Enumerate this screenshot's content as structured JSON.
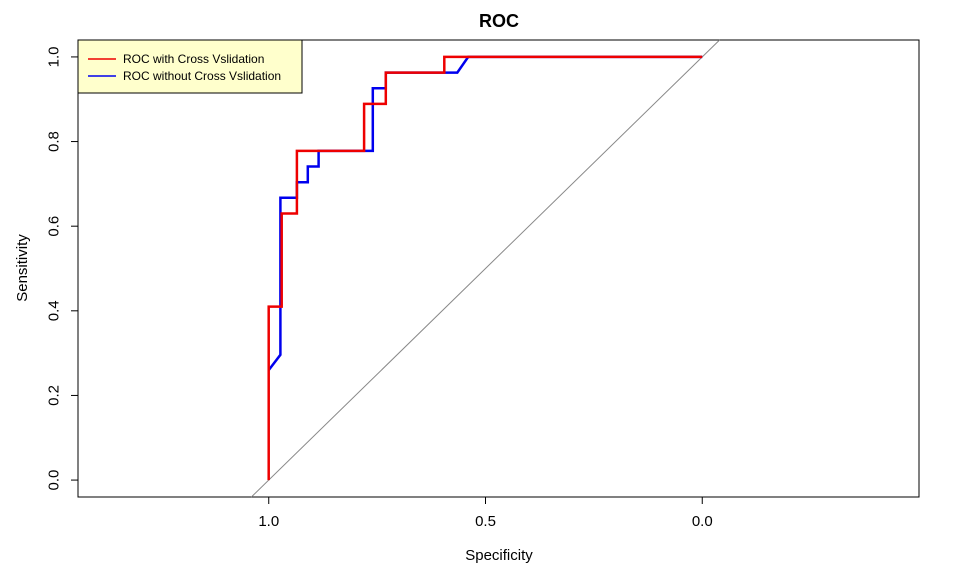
{
  "chart_data": {
    "type": "line",
    "title": "ROC",
    "xlabel": "Specificity",
    "ylabel": "Sensitivity",
    "x_reversed": true,
    "xlim": [
      1.44,
      -0.5
    ],
    "ylim": [
      -0.04,
      1.04
    ],
    "x_ticks": [
      1.0,
      0.5,
      0.0
    ],
    "x_tick_labels": [
      "1.0",
      "0.5",
      "0.0"
    ],
    "y_ticks": [
      0.0,
      0.2,
      0.4,
      0.6,
      0.8,
      1.0
    ],
    "y_tick_labels": [
      "0.0",
      "0.2",
      "0.4",
      "0.6",
      "0.8",
      "1.0"
    ],
    "grid": false,
    "legend_position": "top-left",
    "reference_line": {
      "from": [
        1.04,
        -0.04
      ],
      "to": [
        -0.04,
        1.04
      ],
      "color": "#888888"
    },
    "series": [
      {
        "name": "ROC without Cross Vslidation",
        "color": "#0000ee",
        "points": [
          [
            1.0,
            0.26
          ],
          [
            0.973,
            0.296
          ],
          [
            0.973,
            0.667
          ],
          [
            0.935,
            0.667
          ],
          [
            0.935,
            0.704
          ],
          [
            0.91,
            0.704
          ],
          [
            0.91,
            0.741
          ],
          [
            0.885,
            0.741
          ],
          [
            0.885,
            0.778
          ],
          [
            0.76,
            0.778
          ],
          [
            0.76,
            0.926
          ],
          [
            0.73,
            0.926
          ],
          [
            0.73,
            0.963
          ],
          [
            0.565,
            0.963
          ],
          [
            0.54,
            1.0
          ],
          [
            0.0,
            1.0
          ]
        ]
      },
      {
        "name": "ROC with Cross Vslidation",
        "color": "#ee0000",
        "points": [
          [
            1.0,
            0.0
          ],
          [
            1.0,
            0.41
          ],
          [
            0.97,
            0.41
          ],
          [
            0.97,
            0.63
          ],
          [
            0.935,
            0.63
          ],
          [
            0.935,
            0.778
          ],
          [
            0.78,
            0.778
          ],
          [
            0.78,
            0.889
          ],
          [
            0.73,
            0.889
          ],
          [
            0.73,
            0.963
          ],
          [
            0.595,
            0.963
          ],
          [
            0.595,
            1.0
          ],
          [
            0.0,
            1.0
          ]
        ]
      }
    ],
    "legend": {
      "entries": [
        "ROC with Cross Vslidation",
        "ROC without Cross Vslidation"
      ],
      "colors": [
        "#ee0000",
        "#0000ee"
      ],
      "background": "#ffffcc"
    }
  }
}
